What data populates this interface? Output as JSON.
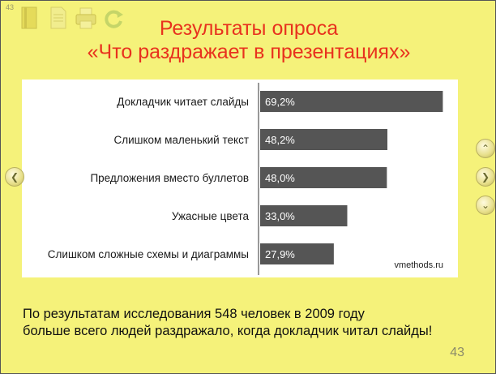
{
  "slide_number_top": "43",
  "title_line1": "Результаты опроса",
  "title_line2": "«Что раздражает в презентациях»",
  "chart_data": {
    "type": "bar",
    "orientation": "horizontal",
    "categories": [
      "Докладчик читает слайды",
      "Слишком маленький текст",
      "Предложения вместо буллетов",
      "Ужасные цвета",
      "Слишком сложные схемы и диаграммы"
    ],
    "values": [
      69.2,
      48.2,
      48.0,
      33.0,
      27.9
    ],
    "value_labels": [
      "69,2%",
      "48,2%",
      "48,0%",
      "33,0%",
      "27,9%"
    ],
    "xlim": [
      0,
      70
    ],
    "bar_color": "#555555",
    "grid": false,
    "source": "vmethods.ru"
  },
  "caption_line1": "По результатам исследования 548 человек в 2009 году",
  "caption_line2": "больше всего людей раздражало, когда докладчик читал слайды!",
  "page_number": "43",
  "colors": {
    "background": "#f5f27a",
    "title": "#e8321e"
  },
  "icons": [
    "book-icon",
    "document-icon",
    "printer-icon",
    "refresh-icon",
    "prev-arrow-icon",
    "up-arrow-icon",
    "next-arrow-icon",
    "down-arrow-icon"
  ]
}
